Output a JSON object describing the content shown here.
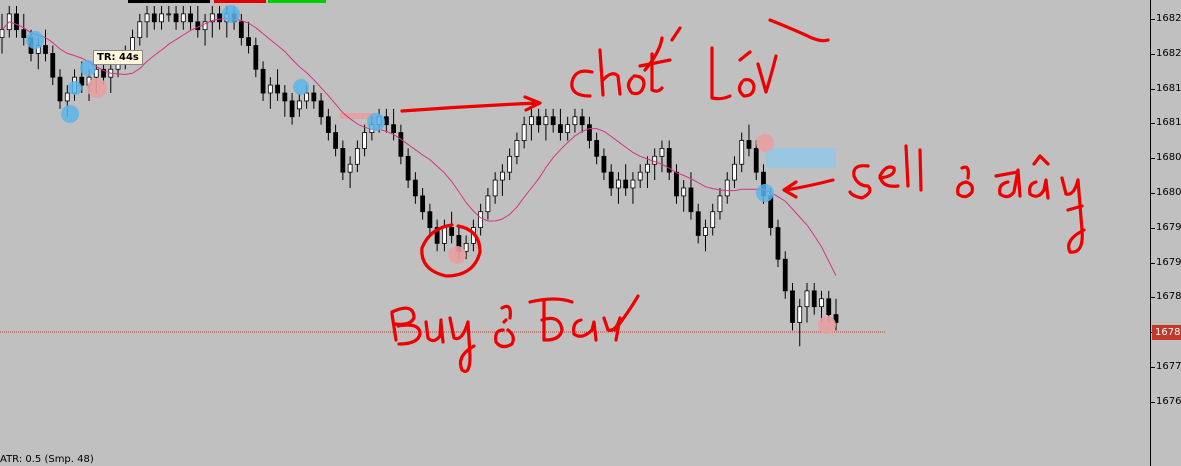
{
  "chart_data": {
    "type": "candlestick",
    "y_axis_ticks": [
      "1682",
      "1682",
      "1681",
      "1681",
      "1680",
      "1680",
      "1679",
      "1679",
      "1678",
      "1677",
      "1677",
      "1676"
    ],
    "current_price_label": "1678",
    "moving_average_color": "#d63384",
    "candles": [
      [
        1681.9,
        1682.2,
        1681.7,
        1682.0
      ],
      [
        1682.0,
        1682.3,
        1681.9,
        1682.2
      ],
      [
        1682.2,
        1682.3,
        1681.9,
        1682.0
      ],
      [
        1682.0,
        1682.2,
        1681.8,
        1681.9
      ],
      [
        1681.9,
        1682.0,
        1681.6,
        1681.7
      ],
      [
        1681.7,
        1681.9,
        1681.5,
        1681.8
      ],
      [
        1681.8,
        1682.0,
        1681.6,
        1681.7
      ],
      [
        1681.7,
        1681.8,
        1681.3,
        1681.4
      ],
      [
        1681.4,
        1681.5,
        1681.0,
        1681.1
      ],
      [
        1681.1,
        1681.3,
        1680.9,
        1681.2
      ],
      [
        1681.2,
        1681.5,
        1681.1,
        1681.4
      ],
      [
        1681.4,
        1681.6,
        1681.2,
        1681.3
      ],
      [
        1681.3,
        1681.5,
        1681.1,
        1681.4
      ],
      [
        1681.4,
        1681.6,
        1681.2,
        1681.5
      ],
      [
        1681.5,
        1681.7,
        1681.3,
        1681.4
      ],
      [
        1681.4,
        1681.6,
        1681.2,
        1681.5
      ],
      [
        1681.5,
        1681.7,
        1681.4,
        1681.6
      ],
      [
        1681.6,
        1681.8,
        1681.5,
        1681.7
      ],
      [
        1681.7,
        1682.0,
        1681.6,
        1681.9
      ],
      [
        1681.9,
        1682.2,
        1681.8,
        1682.1
      ],
      [
        1682.1,
        1682.3,
        1681.9,
        1682.2
      ],
      [
        1682.2,
        1682.3,
        1682.0,
        1682.1
      ],
      [
        1682.1,
        1682.3,
        1682.0,
        1682.2
      ],
      [
        1682.2,
        1682.3,
        1682.1,
        1682.2
      ],
      [
        1682.2,
        1682.3,
        1682.0,
        1682.1
      ],
      [
        1682.1,
        1682.3,
        1682.0,
        1682.2
      ],
      [
        1682.2,
        1682.3,
        1682.0,
        1682.1
      ],
      [
        1682.1,
        1682.3,
        1681.9,
        1682.0
      ],
      [
        1682.0,
        1682.2,
        1681.8,
        1682.1
      ],
      [
        1682.1,
        1682.3,
        1681.9,
        1682.2
      ],
      [
        1682.2,
        1682.3,
        1682.0,
        1682.1
      ],
      [
        1682.1,
        1682.3,
        1681.9,
        1682.2
      ],
      [
        1682.2,
        1682.3,
        1682.0,
        1682.1
      ],
      [
        1682.1,
        1682.2,
        1681.8,
        1681.9
      ],
      [
        1681.9,
        1682.1,
        1681.7,
        1681.8
      ],
      [
        1681.8,
        1681.9,
        1681.4,
        1681.5
      ],
      [
        1681.5,
        1681.6,
        1681.1,
        1681.2
      ],
      [
        1681.2,
        1681.4,
        1681.0,
        1681.3
      ],
      [
        1681.3,
        1681.5,
        1681.1,
        1681.2
      ],
      [
        1681.2,
        1681.3,
        1680.9,
        1681.1
      ],
      [
        1681.1,
        1681.2,
        1680.8,
        1680.9
      ],
      [
        1681.0,
        1681.2,
        1680.9,
        1681.1
      ],
      [
        1681.1,
        1681.3,
        1681.0,
        1681.2
      ],
      [
        1681.2,
        1681.3,
        1681.0,
        1681.1
      ],
      [
        1681.1,
        1681.2,
        1680.8,
        1680.9
      ],
      [
        1680.9,
        1681.0,
        1680.6,
        1680.7
      ],
      [
        1680.7,
        1680.8,
        1680.4,
        1680.5
      ],
      [
        1680.5,
        1680.6,
        1680.1,
        1680.2
      ],
      [
        1680.2,
        1680.4,
        1680.0,
        1680.3
      ],
      [
        1680.3,
        1680.6,
        1680.2,
        1680.5
      ],
      [
        1680.5,
        1680.8,
        1680.4,
        1680.7
      ],
      [
        1680.7,
        1680.9,
        1680.6,
        1680.8
      ],
      [
        1680.8,
        1681.0,
        1680.7,
        1680.9
      ],
      [
        1680.9,
        1681.0,
        1680.7,
        1680.8
      ],
      [
        1680.8,
        1681.0,
        1680.6,
        1680.7
      ],
      [
        1680.7,
        1680.8,
        1680.3,
        1680.4
      ],
      [
        1680.4,
        1680.5,
        1680.0,
        1680.1
      ],
      [
        1680.1,
        1680.2,
        1679.8,
        1679.9
      ],
      [
        1679.9,
        1680.0,
        1679.6,
        1679.7
      ],
      [
        1679.7,
        1679.8,
        1679.4,
        1679.5
      ],
      [
        1679.5,
        1679.6,
        1679.2,
        1679.3
      ],
      [
        1679.3,
        1679.6,
        1679.2,
        1679.5
      ],
      [
        1679.5,
        1679.7,
        1679.3,
        1679.4
      ],
      [
        1679.4,
        1679.5,
        1679.1,
        1679.2
      ],
      [
        1679.2,
        1679.4,
        1679.1,
        1679.3
      ],
      [
        1679.3,
        1679.6,
        1679.2,
        1679.5
      ],
      [
        1679.5,
        1679.8,
        1679.4,
        1679.7
      ],
      [
        1679.7,
        1680.0,
        1679.6,
        1679.9
      ],
      [
        1679.9,
        1680.2,
        1679.8,
        1680.1
      ],
      [
        1680.1,
        1680.3,
        1679.9,
        1680.2
      ],
      [
        1680.2,
        1680.5,
        1680.1,
        1680.4
      ],
      [
        1680.4,
        1680.7,
        1680.3,
        1680.6
      ],
      [
        1680.6,
        1680.9,
        1680.5,
        1680.8
      ],
      [
        1680.8,
        1681.0,
        1680.6,
        1680.9
      ],
      [
        1680.9,
        1681.0,
        1680.7,
        1680.8
      ],
      [
        1680.8,
        1681.0,
        1680.6,
        1680.9
      ],
      [
        1680.9,
        1681.0,
        1680.7,
        1680.8
      ],
      [
        1680.8,
        1681.0,
        1680.6,
        1680.7
      ],
      [
        1680.7,
        1680.9,
        1680.6,
        1680.8
      ],
      [
        1680.8,
        1681.0,
        1680.7,
        1680.9
      ],
      [
        1680.9,
        1681.0,
        1680.7,
        1680.8
      ],
      [
        1680.8,
        1680.9,
        1680.5,
        1680.6
      ],
      [
        1680.6,
        1680.7,
        1680.3,
        1680.4
      ],
      [
        1680.4,
        1680.5,
        1680.1,
        1680.2
      ],
      [
        1680.2,
        1680.3,
        1679.9,
        1680.0
      ],
      [
        1680.0,
        1680.2,
        1679.8,
        1680.1
      ],
      [
        1680.1,
        1680.3,
        1679.9,
        1680.0
      ],
      [
        1680.0,
        1680.2,
        1679.8,
        1680.1
      ],
      [
        1680.1,
        1680.3,
        1680.0,
        1680.2
      ],
      [
        1680.2,
        1680.4,
        1680.0,
        1680.3
      ],
      [
        1680.3,
        1680.5,
        1680.1,
        1680.4
      ],
      [
        1680.4,
        1680.6,
        1680.2,
        1680.5
      ],
      [
        1680.5,
        1680.6,
        1680.1,
        1680.2
      ],
      [
        1680.2,
        1680.3,
        1679.8,
        1679.9
      ],
      [
        1679.9,
        1680.1,
        1679.7,
        1680.0
      ],
      [
        1680.0,
        1680.2,
        1679.6,
        1679.7
      ],
      [
        1679.7,
        1679.8,
        1679.3,
        1679.4
      ],
      [
        1679.4,
        1679.6,
        1679.2,
        1679.5
      ],
      [
        1679.5,
        1679.8,
        1679.4,
        1679.7
      ],
      [
        1679.7,
        1680.0,
        1679.6,
        1679.9
      ],
      [
        1679.9,
        1680.2,
        1679.8,
        1680.1
      ],
      [
        1680.1,
        1680.4,
        1680.0,
        1680.3
      ],
      [
        1680.3,
        1680.7,
        1680.2,
        1680.6
      ],
      [
        1680.6,
        1680.8,
        1680.4,
        1680.5
      ],
      [
        1680.5,
        1680.6,
        1680.1,
        1680.2
      ],
      [
        1680.2,
        1680.3,
        1679.8,
        1679.9
      ],
      [
        1679.9,
        1680.0,
        1679.4,
        1679.5
      ],
      [
        1679.5,
        1679.6,
        1679.0,
        1679.1
      ],
      [
        1679.1,
        1679.2,
        1678.6,
        1678.7
      ],
      [
        1678.7,
        1678.8,
        1678.2,
        1678.3
      ],
      [
        1678.3,
        1678.6,
        1678.0,
        1678.5
      ],
      [
        1678.5,
        1678.8,
        1678.3,
        1678.7
      ],
      [
        1678.7,
        1678.8,
        1678.4,
        1678.5
      ],
      [
        1678.5,
        1678.7,
        1678.3,
        1678.6
      ],
      [
        1678.6,
        1678.7,
        1678.3,
        1678.4
      ],
      [
        1678.4,
        1678.6,
        1678.2,
        1678.3
      ]
    ]
  },
  "annotations": {
    "tr_timer": "TR: 44s",
    "indicator": "ATR: 0.5   (Smp. 48)"
  }
}
